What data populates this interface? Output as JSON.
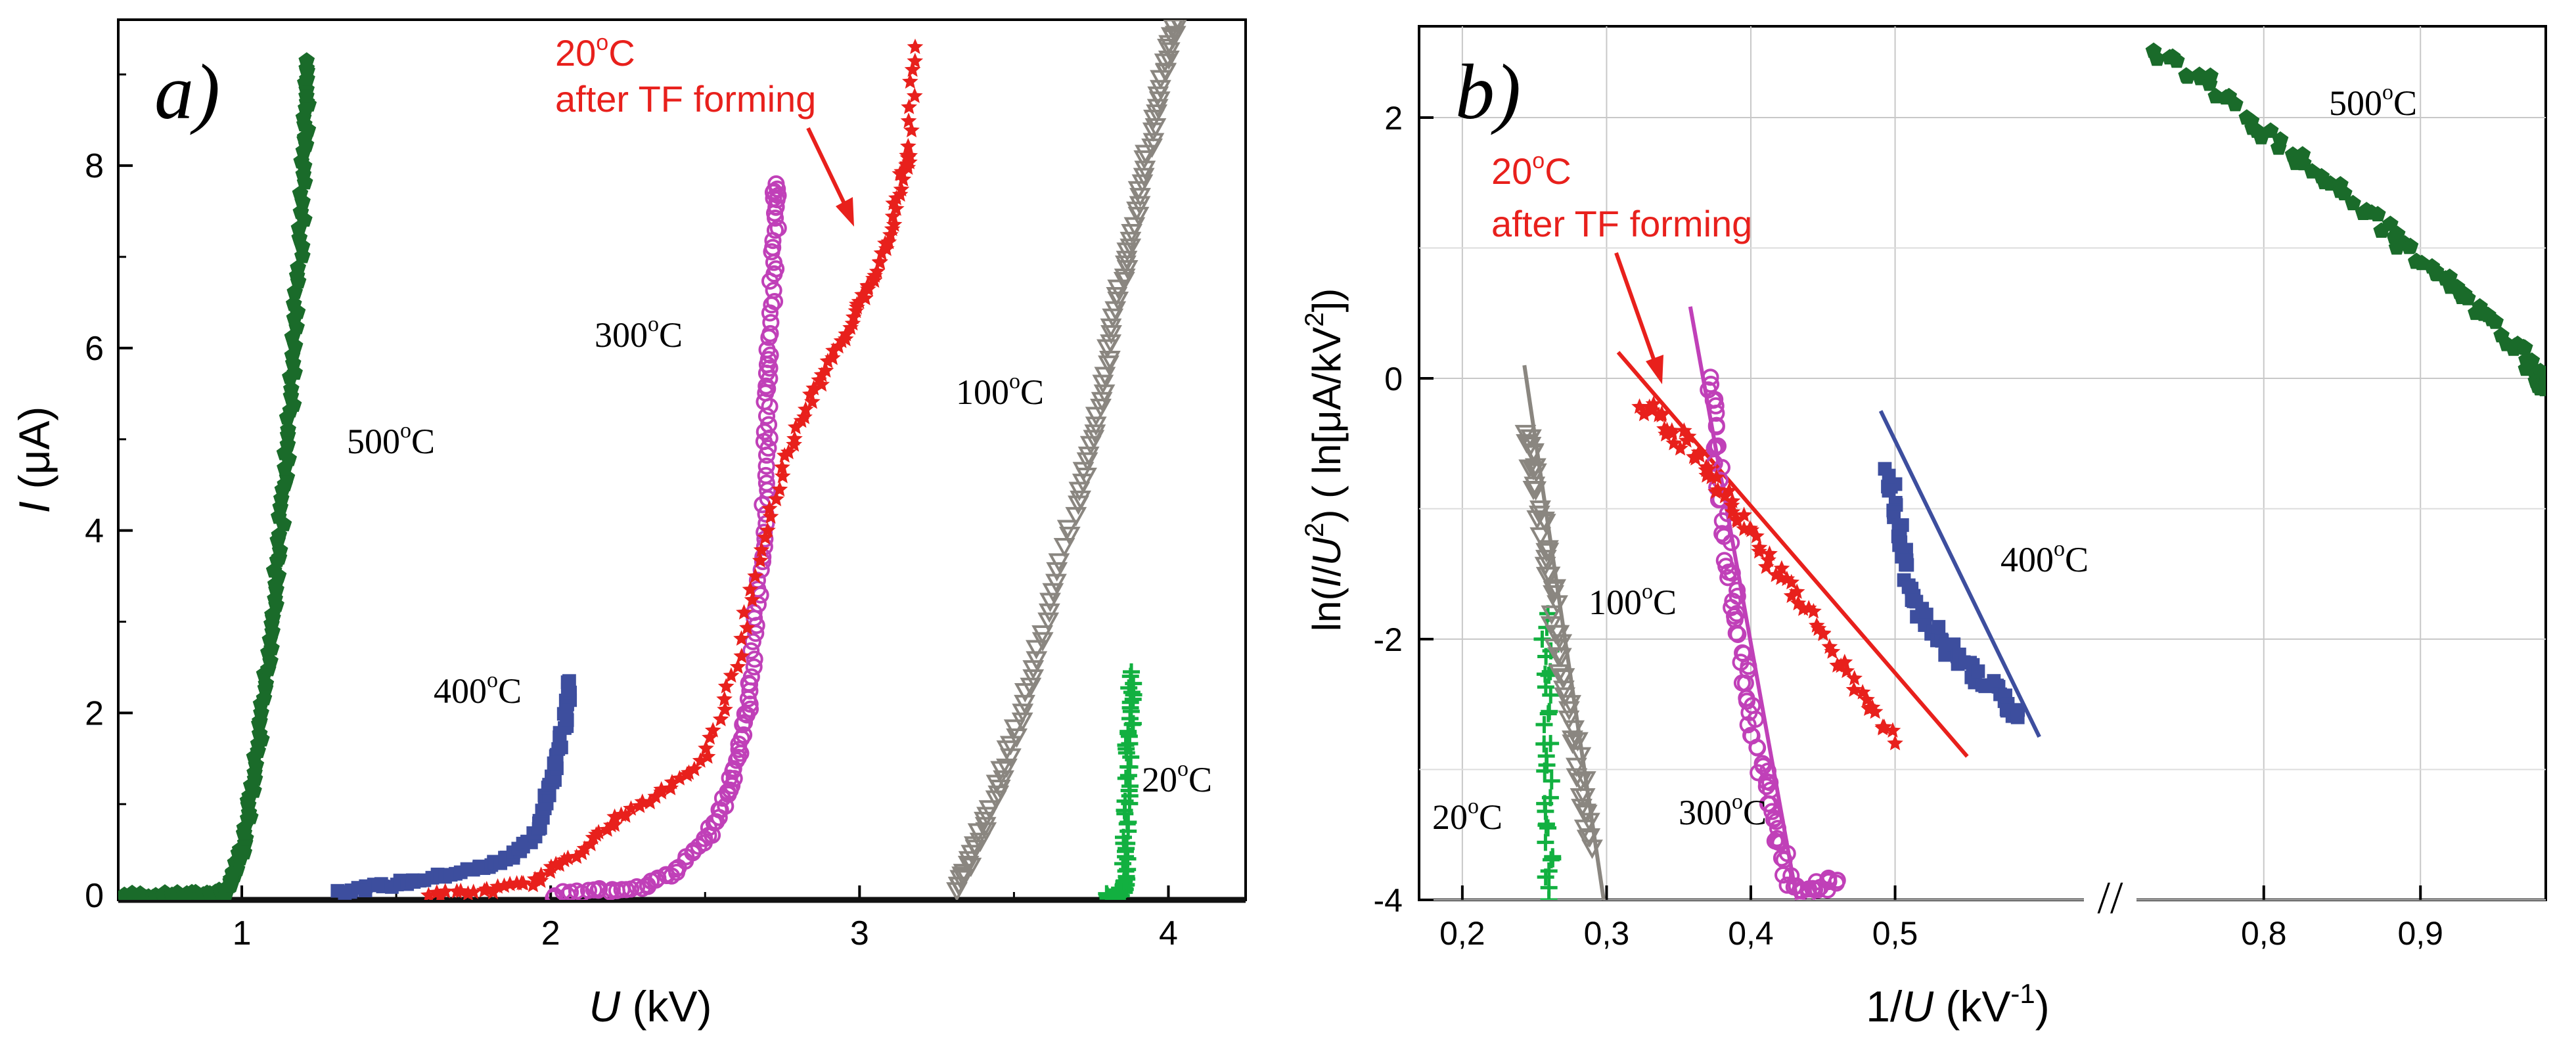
{
  "chart_data": [
    {
      "type": "scatter",
      "panel": "a)",
      "xlabel_var": "U",
      "xlabel_unit": " (kV)",
      "ylabel_var": "I",
      "ylabel_unit": " (μA)",
      "xlim": [
        0.6,
        4.25
      ],
      "ylim": [
        -0.05,
        9.6
      ],
      "xticks": [
        1,
        2,
        3,
        4
      ],
      "yticks": [
        0,
        2,
        4,
        6,
        8
      ],
      "series": [
        {
          "name": "500°C",
          "color": "#1a6b2a",
          "marker": "pentagon",
          "curve": [
            [
              0.62,
              0
            ],
            [
              0.72,
              0
            ],
            [
              0.82,
              0
            ],
            [
              0.9,
              0.02
            ],
            [
              0.95,
              0.05
            ],
            [
              0.98,
              0.25
            ],
            [
              1.01,
              0.6
            ],
            [
              1.03,
              1.1
            ],
            [
              1.06,
              1.7
            ],
            [
              1.08,
              2.4
            ],
            [
              1.1,
              3.1
            ],
            [
              1.12,
              3.8
            ],
            [
              1.14,
              4.6
            ],
            [
              1.16,
              5.4
            ],
            [
              1.17,
              6.2
            ],
            [
              1.19,
              7.1
            ],
            [
              1.2,
              8.0
            ],
            [
              1.21,
              8.6
            ],
            [
              1.21,
              9.15
            ]
          ]
        },
        {
          "name": "400°C",
          "color": "#3d4e9e",
          "marker": "square",
          "curve": [
            [
              1.32,
              0.05
            ],
            [
              1.45,
              0.1
            ],
            [
              1.6,
              0.18
            ],
            [
              1.75,
              0.28
            ],
            [
              1.85,
              0.38
            ],
            [
              1.92,
              0.55
            ],
            [
              1.97,
              0.8
            ],
            [
              2.0,
              1.2
            ],
            [
              2.03,
              1.6
            ],
            [
              2.05,
              2.0
            ],
            [
              2.06,
              2.35
            ]
          ]
        },
        {
          "name": "300°C",
          "color": "#c040b8",
          "marker": "circle",
          "curve": [
            [
              2.0,
              0
            ],
            [
              2.15,
              0.05
            ],
            [
              2.3,
              0.1
            ],
            [
              2.4,
              0.25
            ],
            [
              2.5,
              0.6
            ],
            [
              2.56,
              1.0
            ],
            [
              2.6,
              1.4
            ],
            [
              2.63,
              1.9
            ],
            [
              2.65,
              2.4
            ],
            [
              2.67,
              3.2
            ],
            [
              2.69,
              4.0
            ],
            [
              2.7,
              4.8
            ],
            [
              2.7,
              5.5
            ],
            [
              2.71,
              6.0
            ],
            [
              2.72,
              6.8
            ],
            [
              2.73,
              7.5
            ],
            [
              2.73,
              7.8
            ]
          ]
        },
        {
          "name": "20°C after TF forming",
          "color": "#e8201c",
          "marker": "star",
          "curve": [
            [
              1.6,
              0
            ],
            [
              1.8,
              0.05
            ],
            [
              1.95,
              0.15
            ],
            [
              2.08,
              0.45
            ],
            [
              2.2,
              0.8
            ],
            [
              2.35,
              1.1
            ],
            [
              2.5,
              1.5
            ],
            [
              2.6,
              2.5
            ],
            [
              2.68,
              3.8
            ],
            [
              2.76,
              4.8
            ],
            [
              2.85,
              5.5
            ],
            [
              2.93,
              6.0
            ],
            [
              3.0,
              6.5
            ],
            [
              3.05,
              6.8
            ],
            [
              3.1,
              7.3
            ],
            [
              3.14,
              7.9
            ],
            [
              3.16,
              8.1
            ],
            [
              3.18,
              9.3
            ]
          ]
        },
        {
          "name": "100°C",
          "color": "#8a8680",
          "marker": "triangle-down",
          "curve": [
            [
              3.32,
              0.05
            ],
            [
              3.36,
              0.4
            ],
            [
              3.42,
              0.9
            ],
            [
              3.48,
              1.5
            ],
            [
              3.55,
              2.3
            ],
            [
              3.62,
              3.2
            ],
            [
              3.7,
              4.3
            ],
            [
              3.76,
              5.0
            ],
            [
              3.8,
              5.8
            ],
            [
              3.84,
              6.6
            ],
            [
              3.88,
              7.2
            ],
            [
              3.92,
              7.9
            ],
            [
              3.96,
              8.6
            ],
            [
              4.0,
              9.2
            ],
            [
              4.03,
              9.6
            ]
          ]
        },
        {
          "name": "20°C",
          "color": "#12b040",
          "marker": "plus",
          "curve": [
            [
              3.8,
              0
            ],
            [
              3.83,
              0
            ],
            [
              3.85,
              0.05
            ],
            [
              3.86,
              0.2
            ],
            [
              3.86,
              0.6
            ],
            [
              3.87,
              1.1
            ],
            [
              3.87,
              1.6
            ],
            [
              3.88,
              2.0
            ],
            [
              3.88,
              2.45
            ]
          ]
        }
      ],
      "labels": [
        {
          "text": "500",
          "sup": "o",
          "unit": "C",
          "color": "#000000"
        },
        {
          "text": "400",
          "sup": "o",
          "unit": "C",
          "color": "#000000"
        },
        {
          "text": "300",
          "sup": "o",
          "unit": "C",
          "color": "#000000"
        },
        {
          "text": "100",
          "sup": "o",
          "unit": "C",
          "color": "#000000"
        },
        {
          "text": "20",
          "sup": "o",
          "unit": "C",
          "color": "#000000"
        },
        {
          "text": "20",
          "sup": "o",
          "unit": "C",
          "color": "#e8201c"
        },
        {
          "text": "after TF forming",
          "color": "#e8201c"
        }
      ]
    },
    {
      "type": "scatter",
      "panel": "b)",
      "xlabel_pre": "1/",
      "xlabel_var": "U",
      "xlabel_unit": " (kV",
      "xlabel_sup": "-1",
      "xlabel_close": ")",
      "ylabel_pre": "ln(",
      "ylabel_var1": "I",
      "ylabel_mid": "/",
      "ylabel_var2": "U",
      "ylabel_sup": "2",
      "ylabel_post": ")  ( ln[μA/kV",
      "ylabel_sup2": "2",
      "ylabel_end": "])",
      "axis_break": "//",
      "x_segments": [
        {
          "xlim": [
            0.17,
            0.63
          ],
          "xticks": [
            0.2,
            0.3,
            0.4,
            0.5
          ]
        },
        {
          "xlim": [
            0.72,
            0.98
          ],
          "xticks": [
            0.8,
            0.9
          ]
        }
      ],
      "xtick_labels": [
        "0,2",
        "0,3",
        "0,4",
        "0,5",
        "0,8",
        "0,9"
      ],
      "ylim": [
        -4,
        2.7
      ],
      "yticks": [
        -4,
        -2,
        0,
        2
      ],
      "series": [
        {
          "name": "20°C",
          "color": "#12b040",
          "marker": "plus",
          "curve": [
            [
              0.258,
              -1.85
            ],
            [
              0.259,
              -2.4
            ],
            [
              0.259,
              -3.0
            ],
            [
              0.26,
              -3.5
            ],
            [
              0.26,
              -4.0
            ]
          ]
        },
        {
          "name": "100°C",
          "color": "#8a8680",
          "marker": "triangle-down",
          "curve": [
            [
              0.245,
              -0.4
            ],
            [
              0.25,
              -0.7
            ],
            [
              0.255,
              -1.1
            ],
            [
              0.26,
              -1.5
            ],
            [
              0.265,
              -1.9
            ],
            [
              0.27,
              -2.3
            ],
            [
              0.278,
              -2.8
            ],
            [
              0.285,
              -3.2
            ],
            [
              0.29,
              -3.6
            ]
          ]
        },
        {
          "name": "300°C",
          "color": "#c040b8",
          "marker": "circle",
          "curve": [
            [
              0.372,
              0
            ],
            [
              0.375,
              -0.4
            ],
            [
              0.38,
              -0.9
            ],
            [
              0.385,
              -1.4
            ],
            [
              0.39,
              -1.8
            ],
            [
              0.395,
              -2.2
            ],
            [
              0.4,
              -2.6
            ],
            [
              0.408,
              -3.0
            ],
            [
              0.415,
              -3.3
            ],
            [
              0.42,
              -3.6
            ],
            [
              0.43,
              -3.95
            ],
            [
              0.445,
              -3.9
            ],
            [
              0.46,
              -3.85
            ]
          ]
        },
        {
          "name": "20°C after TF forming",
          "color": "#e8201c",
          "marker": "star",
          "curve": [
            [
              0.325,
              -0.2
            ],
            [
              0.34,
              -0.35
            ],
            [
              0.355,
              -0.5
            ],
            [
              0.37,
              -0.7
            ],
            [
              0.385,
              -0.95
            ],
            [
              0.4,
              -1.2
            ],
            [
              0.42,
              -1.5
            ],
            [
              0.44,
              -1.8
            ],
            [
              0.46,
              -2.15
            ],
            [
              0.48,
              -2.5
            ],
            [
              0.5,
              -2.8
            ]
          ]
        },
        {
          "name": "400°C",
          "color": "#3d4e9e",
          "marker": "square",
          "curve": [
            [
              0.495,
              -0.7
            ],
            [
              0.5,
              -1.0
            ],
            [
              0.505,
              -1.3
            ],
            [
              0.51,
              -1.6
            ],
            [
              0.52,
              -1.85
            ],
            [
              0.53,
              -2.0
            ],
            [
              0.545,
              -2.15
            ],
            [
              0.56,
              -2.3
            ],
            [
              0.575,
              -2.45
            ],
            [
              0.585,
              -2.6
            ]
          ]
        },
        {
          "name": "500°C",
          "color": "#1a6b2a",
          "marker": "pentagon",
          "curve": [
            [
              0.73,
              2.5
            ],
            [
              0.76,
              2.3
            ],
            [
              0.79,
              2.0
            ],
            [
              0.82,
              1.7
            ],
            [
              0.85,
              1.4
            ],
            [
              0.88,
              1.15
            ],
            [
              0.9,
              0.9
            ],
            [
              0.92,
              0.7
            ],
            [
              0.94,
              0.5
            ],
            [
              0.96,
              0.25
            ],
            [
              0.975,
              0.05
            ],
            [
              0.98,
              -0.05
            ]
          ]
        }
      ],
      "fit_lines": [
        {
          "name": "100°C fit",
          "color": "#8a8680",
          "from": [
            0.243,
            0.1
          ],
          "to": [
            0.298,
            -4.0
          ]
        },
        {
          "name": "300°C fit",
          "color": "#c040b8",
          "from": [
            0.358,
            0.55
          ],
          "to": [
            0.432,
            -4.0
          ]
        },
        {
          "name": "20°C after TF fit",
          "color": "#e8201c",
          "from": [
            0.308,
            0.2
          ],
          "to": [
            0.55,
            -2.9
          ]
        },
        {
          "name": "400°C fit",
          "color": "#3d4e9e",
          "from": [
            0.49,
            -0.25
          ],
          "to": [
            0.6,
            -2.75
          ]
        }
      ],
      "labels": [
        {
          "text": "500",
          "sup": "o",
          "unit": "C",
          "color": "#000000"
        },
        {
          "text": "400",
          "sup": "o",
          "unit": "C",
          "color": "#000000"
        },
        {
          "text": "300",
          "sup": "o",
          "unit": "C",
          "color": "#000000"
        },
        {
          "text": "100",
          "sup": "o",
          "unit": "C",
          "color": "#000000"
        },
        {
          "text": "20",
          "sup": "o",
          "unit": "C",
          "color": "#000000"
        },
        {
          "text": "20",
          "sup": "o",
          "unit": "C",
          "color": "#e8201c"
        },
        {
          "text": "after TF forming",
          "color": "#e8201c"
        }
      ]
    }
  ]
}
